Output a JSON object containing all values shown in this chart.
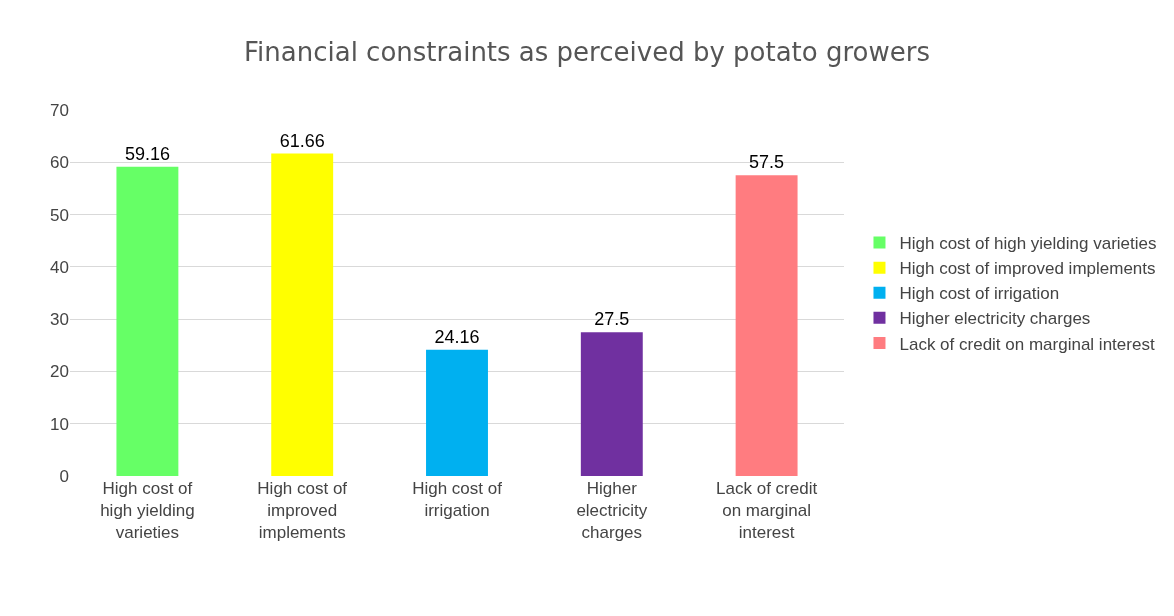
{
  "chart_data": {
    "type": "bar",
    "title": "Financial constraints as perceived by potato growers",
    "categories": [
      "High cost of high yielding varieties",
      "High cost of improved implements",
      "High cost of irrigation",
      "Higher electricity charges",
      "Lack of credit on marginal interest"
    ],
    "series": [
      {
        "name": "High cost of high yielding varieties",
        "color": "#66ff66",
        "values": [
          59.16,
          null,
          null,
          null,
          null
        ]
      },
      {
        "name": "High cost of improved implements",
        "color": "#ffff00",
        "values": [
          null,
          61.66,
          null,
          null,
          null
        ]
      },
      {
        "name": "High cost of irrigation",
        "color": "#00b0f0",
        "values": [
          null,
          null,
          24.16,
          null,
          null
        ]
      },
      {
        "name": "Higher electricity charges",
        "color": "#7030a0",
        "values": [
          null,
          null,
          null,
          27.5,
          null
        ]
      },
      {
        "name": "Lack of credit on marginal interest",
        "color": "#ff7c80",
        "values": [
          null,
          null,
          null,
          null,
          57.5
        ]
      }
    ],
    "ylim": [
      0,
      70
    ],
    "yticks": [
      0,
      10,
      20,
      30,
      40,
      50,
      60,
      70
    ],
    "grid": "y",
    "legend": "right",
    "data_labels": true
  }
}
